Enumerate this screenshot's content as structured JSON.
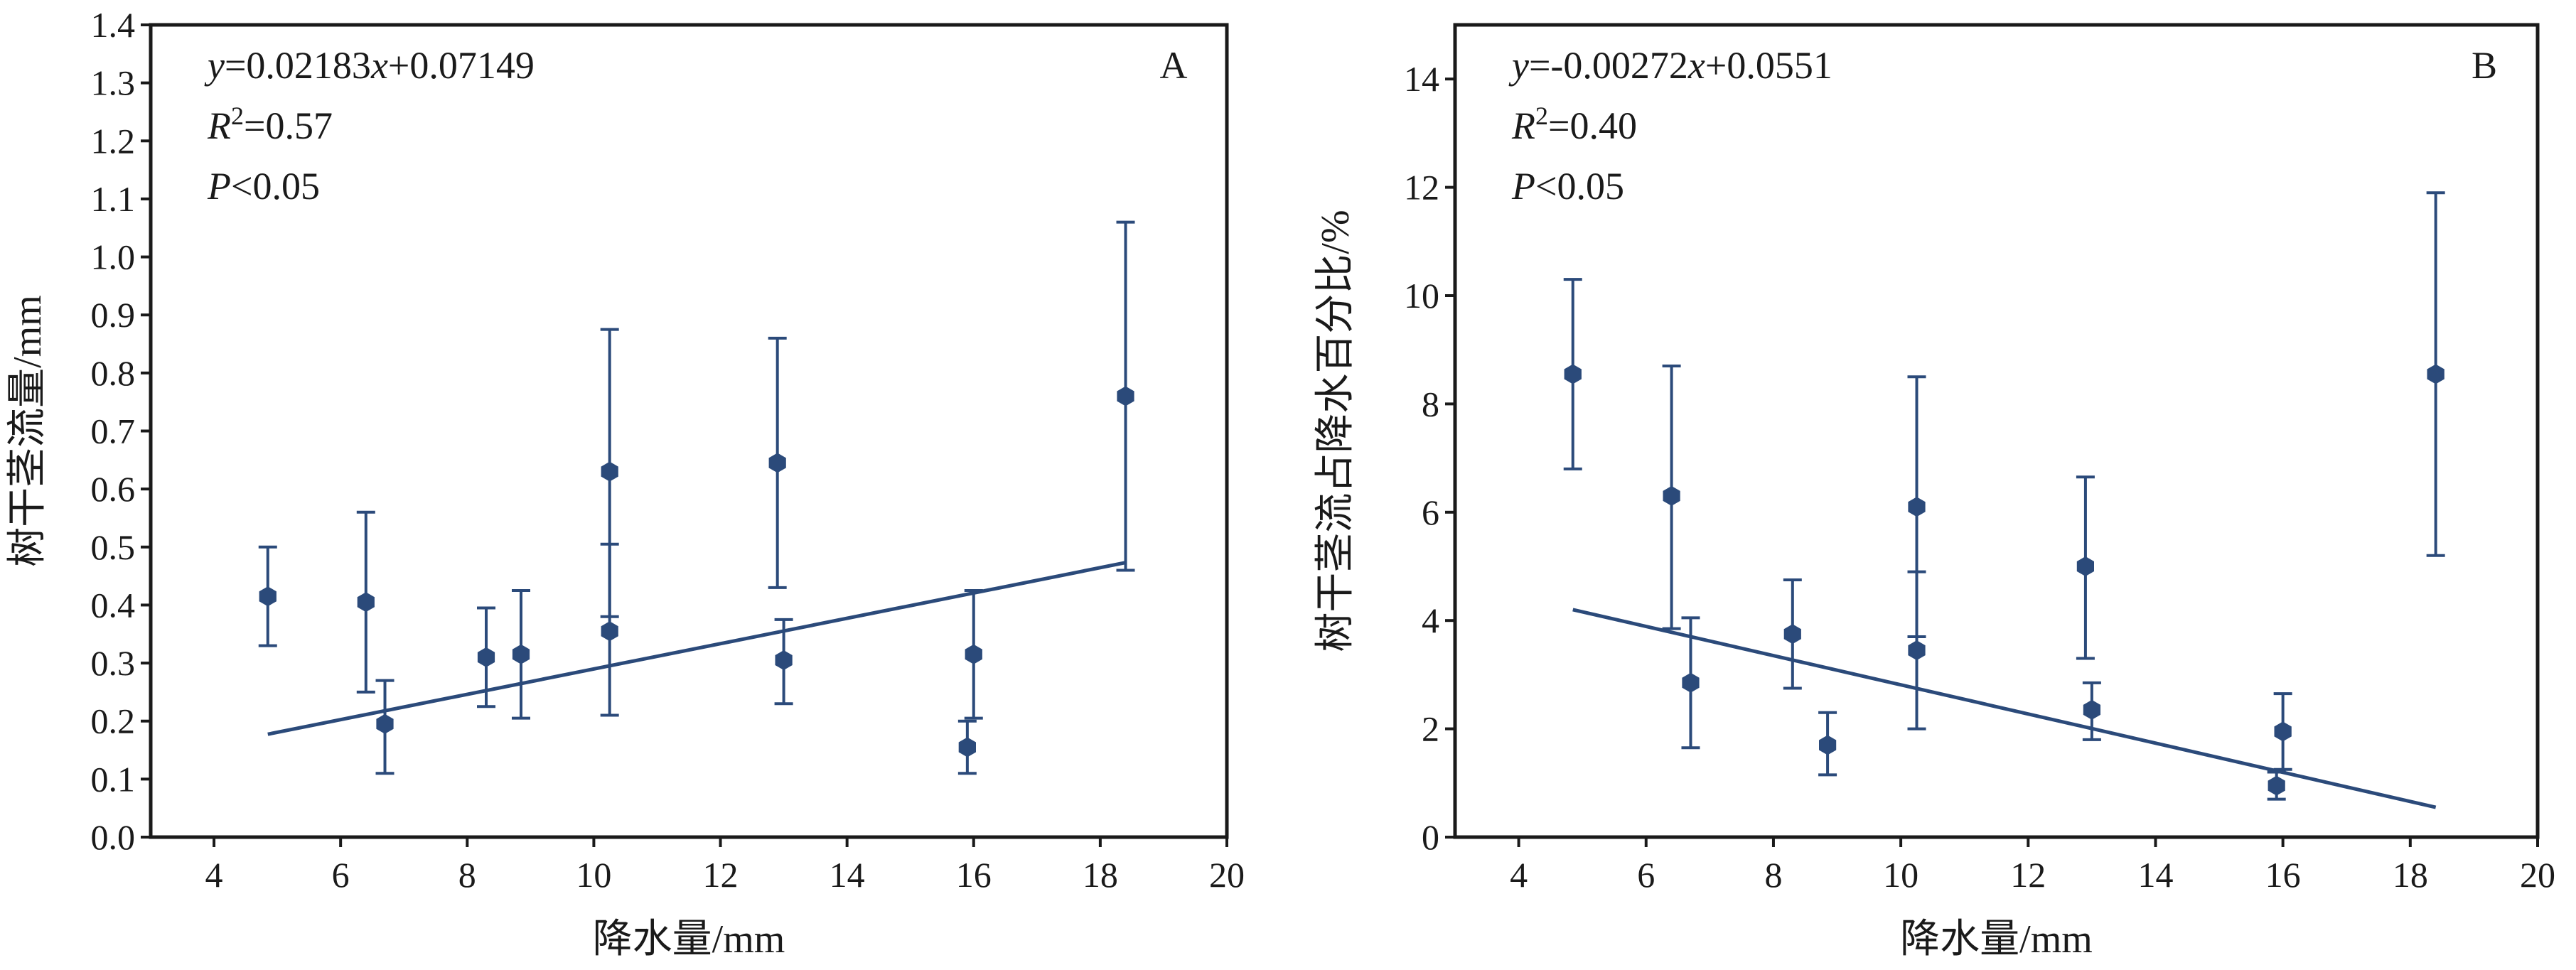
{
  "chart_data": [
    {
      "type": "scatter",
      "panel_label": "A",
      "xlabel": "降水量/mm",
      "ylabel": "树干茎流量/mm",
      "xlim": [
        3,
        20
      ],
      "ylim": [
        0.0,
        1.4
      ],
      "xticks": [
        "4",
        "6",
        "8",
        "10",
        "12",
        "14",
        "16",
        "18",
        "20"
      ],
      "yticks": [
        "0.0",
        "0.1",
        "0.2",
        "0.3",
        "0.4",
        "0.5",
        "0.6",
        "0.7",
        "0.8",
        "0.9",
        "1.0",
        "1.1",
        "1.2",
        "1.3",
        "1.4"
      ],
      "equation": {
        "prefix": "y",
        "text": "=0.02183",
        "var": "x",
        "suffix": "+0.07149"
      },
      "r2": {
        "label": "R",
        "sup": "2",
        "text": "=0.57"
      },
      "p": {
        "label": "P",
        "text": "<0.05"
      },
      "points": [
        {
          "x": 4.85,
          "y": 0.415,
          "lo": 0.33,
          "hi": 0.5
        },
        {
          "x": 6.4,
          "y": 0.405,
          "lo": 0.25,
          "hi": 0.56
        },
        {
          "x": 6.7,
          "y": 0.195,
          "lo": 0.11,
          "hi": 0.27
        },
        {
          "x": 8.3,
          "y": 0.31,
          "lo": 0.225,
          "hi": 0.395
        },
        {
          "x": 8.85,
          "y": 0.315,
          "lo": 0.205,
          "hi": 0.425
        },
        {
          "x": 10.25,
          "y": 0.63,
          "lo": 0.38,
          "hi": 0.875
        },
        {
          "x": 10.25,
          "y": 0.355,
          "lo": 0.21,
          "hi": 0.505
        },
        {
          "x": 12.9,
          "y": 0.645,
          "lo": 0.43,
          "hi": 0.86
        },
        {
          "x": 13.0,
          "y": 0.305,
          "lo": 0.23,
          "hi": 0.375
        },
        {
          "x": 15.9,
          "y": 0.155,
          "lo": 0.11,
          "hi": 0.2
        },
        {
          "x": 16.0,
          "y": 0.315,
          "lo": 0.205,
          "hi": 0.425
        },
        {
          "x": 18.4,
          "y": 0.76,
          "lo": 0.46,
          "hi": 1.06
        }
      ],
      "fit": {
        "slope": 0.02183,
        "intercept": 0.07149,
        "x_range": [
          4.85,
          18.4
        ]
      }
    },
    {
      "type": "scatter",
      "panel_label": "B",
      "xlabel": "降水量/mm",
      "ylabel": "树干茎流占降水百分比/%",
      "xlim": [
        3,
        20
      ],
      "ylim": [
        0,
        15
      ],
      "xticks": [
        "4",
        "6",
        "8",
        "10",
        "12",
        "14",
        "16",
        "18",
        "20"
      ],
      "yticks": [
        "0",
        "2",
        "4",
        "6",
        "8",
        "10",
        "12",
        "14"
      ],
      "equation": {
        "prefix": "y",
        "text": "=-0.00272",
        "var": "x",
        "suffix": "+0.0551"
      },
      "r2": {
        "label": "R",
        "sup": "2",
        "text": "=0.40"
      },
      "p": {
        "label": "P",
        "text": "<0.05"
      },
      "points": [
        {
          "x": 4.85,
          "y": 8.55,
          "lo": 6.8,
          "hi": 10.3
        },
        {
          "x": 6.4,
          "y": 6.3,
          "lo": 3.85,
          "hi": 8.7
        },
        {
          "x": 6.7,
          "y": 2.85,
          "lo": 1.65,
          "hi": 4.05
        },
        {
          "x": 8.3,
          "y": 3.75,
          "lo": 2.75,
          "hi": 4.75
        },
        {
          "x": 8.85,
          "y": 1.7,
          "lo": 1.15,
          "hi": 2.3
        },
        {
          "x": 10.25,
          "y": 6.1,
          "lo": 3.7,
          "hi": 8.5
        },
        {
          "x": 10.25,
          "y": 3.45,
          "lo": 2.0,
          "hi": 4.9
        },
        {
          "x": 12.9,
          "y": 5.0,
          "lo": 3.3,
          "hi": 6.65
        },
        {
          "x": 13.0,
          "y": 2.35,
          "lo": 1.8,
          "hi": 2.85
        },
        {
          "x": 15.9,
          "y": 0.95,
          "lo": 0.7,
          "hi": 1.2
        },
        {
          "x": 16.0,
          "y": 1.95,
          "lo": 1.25,
          "hi": 2.65
        },
        {
          "x": 18.4,
          "y": 8.55,
          "lo": 5.2,
          "hi": 11.9
        }
      ],
      "fit_line": {
        "x_range": [
          4.85,
          18.4
        ],
        "y_at_ends": [
          4.2,
          0.55
        ]
      }
    }
  ],
  "colors": {
    "series": "#2b4a7a",
    "axis": "#1a1a1a"
  }
}
